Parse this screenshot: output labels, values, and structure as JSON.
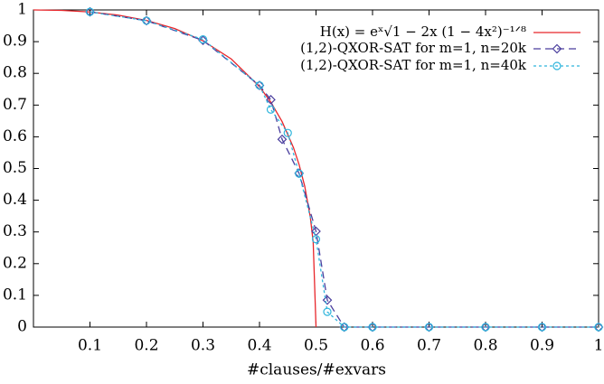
{
  "chart_data": {
    "type": "line",
    "x_label": "#clauses/#exvars",
    "xlim": [
      0,
      1
    ],
    "ylim": [
      0,
      1
    ],
    "xticks": [
      0.1,
      0.2,
      0.3,
      0.4,
      0.5,
      0.6,
      0.7,
      0.8,
      0.9,
      1
    ],
    "yticks": [
      0,
      0.1,
      0.2,
      0.3,
      0.4,
      0.5,
      0.6,
      0.7,
      0.8,
      0.9,
      1
    ],
    "legend": "upper right",
    "series": [
      {
        "name": "H(x) = eˣ√1 − 2x (1 − 4x²)⁻¹ᐟ⁸",
        "color": "#e8262b",
        "marker": "none",
        "dash": "solid",
        "x": [
          0,
          0.05,
          0.1,
          0.15,
          0.2,
          0.25,
          0.3,
          0.35,
          0.4,
          0.42,
          0.44,
          0.46,
          0.47,
          0.48,
          0.49,
          0.495,
          0.5
        ],
        "values": [
          1,
          0.9986,
          0.9936,
          0.9836,
          0.9669,
          0.9412,
          0.9027,
          0.8454,
          0.758,
          0.7093,
          0.6479,
          0.5663,
          0.5128,
          0.4443,
          0.3456,
          0.2677,
          0
        ]
      },
      {
        "name": "(1,2)-QXOR-SAT for m=1, n=20k",
        "color": "#4b3f9e",
        "marker": "diamond",
        "dash": "long",
        "x": [
          0.1,
          0.2,
          0.3,
          0.4,
          0.42,
          0.44,
          0.47,
          0.5,
          0.52,
          0.55,
          0.6,
          0.7,
          0.8,
          0.9,
          1
        ],
        "values": [
          0.994,
          0.966,
          0.904,
          0.762,
          0.717,
          0.592,
          0.485,
          0.302,
          0.085,
          0,
          0,
          0,
          0,
          0,
          0
        ]
      },
      {
        "name": "(1,2)-QXOR-SAT for m=1, n=40k",
        "color": "#2fb5dc",
        "marker": "circle",
        "dash": "short",
        "x": [
          0.1,
          0.2,
          0.3,
          0.4,
          0.42,
          0.45,
          0.47,
          0.5,
          0.52,
          0.55,
          0.6,
          0.7,
          0.8,
          0.9,
          1
        ],
        "values": [
          0.994,
          0.966,
          0.907,
          0.762,
          0.686,
          0.612,
          0.484,
          0.277,
          0.048,
          0,
          0,
          0,
          0,
          0,
          0
        ]
      }
    ]
  }
}
